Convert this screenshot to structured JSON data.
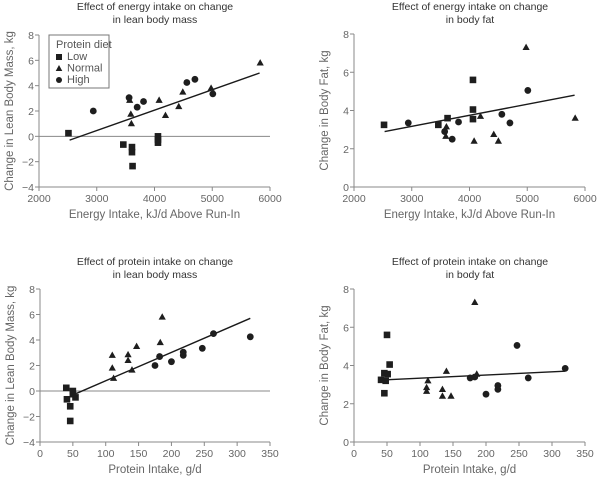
{
  "chart_data": [
    {
      "type": "scatter",
      "id": "energy-lean",
      "title": [
        "Effect of energy intake on change",
        "in lean body mass"
      ],
      "xlabel": "Energy Intake, kJ/d Above Run-In",
      "ylabel": "Change in Lean Body Mass, kg",
      "xlim": [
        2000,
        6000
      ],
      "ylim": [
        -4,
        8
      ],
      "xticks": [
        2000,
        3000,
        4000,
        5000,
        6000
      ],
      "yticks": [
        -4,
        -2,
        0,
        2,
        4,
        6,
        8
      ],
      "zero_line": true,
      "legend": {
        "title": "Protein diet",
        "placement": "top-left",
        "entries": [
          "Low",
          "Normal",
          "High"
        ]
      },
      "fit_line": [
        [
          2530,
          -0.3
        ],
        [
          5820,
          5.0
        ]
      ],
      "series": [
        {
          "name": "Low",
          "marker": "square",
          "points": [
            [
              2510,
              0.25
            ],
            [
              3460,
              -0.65
            ],
            [
              3610,
              -0.85
            ],
            [
              3610,
              -1.25
            ],
            [
              3620,
              -2.35
            ],
            [
              4060,
              0.0
            ],
            [
              4060,
              -0.25
            ],
            [
              4060,
              -0.5
            ]
          ]
        },
        {
          "name": "Normal",
          "marker": "triangle",
          "points": [
            [
              3570,
              2.85
            ],
            [
              3590,
              1.75
            ],
            [
              3600,
              1.0
            ],
            [
              4080,
              2.85
            ],
            [
              4190,
              1.65
            ],
            [
              4420,
              2.35
            ],
            [
              4490,
              3.5
            ],
            [
              4980,
              3.8
            ],
            [
              5830,
              5.8
            ]
          ]
        },
        {
          "name": "High",
          "marker": "circle",
          "points": [
            [
              2940,
              2.0
            ],
            [
              3560,
              3.05
            ],
            [
              3700,
              2.3
            ],
            [
              3810,
              2.75
            ],
            [
              4560,
              4.25
            ],
            [
              4700,
              4.5
            ],
            [
              5010,
              3.35
            ]
          ]
        }
      ]
    },
    {
      "type": "scatter",
      "id": "energy-fat",
      "title": [
        "Effect of energy intake on change",
        "in body fat"
      ],
      "xlabel": "Energy Intake, kJ/d Above Run-In",
      "ylabel": "Change in Body Fat, kg",
      "xlim": [
        2000,
        6000
      ],
      "ylim": [
        0,
        8
      ],
      "xticks": [
        2000,
        3000,
        4000,
        5000,
        6000
      ],
      "yticks": [
        0,
        2,
        4,
        6,
        8
      ],
      "zero_line": false,
      "fit_line": [
        [
          2530,
          2.9
        ],
        [
          5820,
          4.8
        ]
      ],
      "series": [
        {
          "name": "Low",
          "marker": "square",
          "points": [
            [
              2520,
              3.25
            ],
            [
              3460,
              3.25
            ],
            [
              3620,
              3.6
            ],
            [
              4060,
              5.6
            ],
            [
              4060,
              4.05
            ],
            [
              4060,
              3.55
            ]
          ]
        },
        {
          "name": "Normal",
          "marker": "triangle",
          "points": [
            [
              3600,
              3.15
            ],
            [
              3590,
              2.65
            ],
            [
              4080,
              2.4
            ],
            [
              4190,
              3.7
            ],
            [
              4420,
              2.75
            ],
            [
              4500,
              2.4
            ],
            [
              4980,
              7.3
            ],
            [
              5830,
              3.6
            ]
          ]
        },
        {
          "name": "High",
          "marker": "circle",
          "points": [
            [
              2940,
              3.35
            ],
            [
              3570,
              2.9
            ],
            [
              3700,
              2.5
            ],
            [
              3810,
              3.4
            ],
            [
              4560,
              3.8
            ],
            [
              4700,
              3.35
            ],
            [
              5010,
              5.05
            ]
          ]
        }
      ]
    },
    {
      "type": "scatter",
      "id": "protein-lean",
      "title": [
        "Effect of protein intake on change",
        "in lean body mass"
      ],
      "xlabel": "Protein Intake, g/d",
      "ylabel": "Change in Lean Body Mass, kg",
      "xlim": [
        0,
        350
      ],
      "ylim": [
        -4,
        8
      ],
      "xticks": [
        0,
        50,
        100,
        150,
        200,
        250,
        300,
        350
      ],
      "yticks": [
        -4,
        -2,
        0,
        2,
        4,
        6,
        8
      ],
      "zero_line": true,
      "fit_line": [
        [
          55,
          -0.2
        ],
        [
          320,
          5.7
        ]
      ],
      "series": [
        {
          "name": "Low",
          "marker": "square",
          "points": [
            [
              40,
              0.25
            ],
            [
              41,
              -0.65
            ],
            [
              46,
              -1.2
            ],
            [
              46,
              -2.35
            ],
            [
              50,
              0.0
            ],
            [
              50,
              -0.25
            ],
            [
              54,
              -0.5
            ]
          ]
        },
        {
          "name": "Normal",
          "marker": "triangle",
          "points": [
            [
              110,
              2.8
            ],
            [
              110,
              1.8
            ],
            [
              112,
              1.0
            ],
            [
              134,
              2.85
            ],
            [
              134,
              2.4
            ],
            [
              140,
              1.65
            ],
            [
              147,
              3.5
            ],
            [
              183,
              3.8
            ],
            [
              186,
              5.8
            ]
          ]
        },
        {
          "name": "High",
          "marker": "circle",
          "points": [
            [
              175,
              2.0
            ],
            [
              182,
              2.7
            ],
            [
              200,
              2.3
            ],
            [
              218,
              3.05
            ],
            [
              218,
              2.8
            ],
            [
              247,
              3.35
            ],
            [
              264,
              4.5
            ],
            [
              320,
              4.25
            ]
          ]
        }
      ]
    },
    {
      "type": "scatter",
      "id": "protein-fat",
      "title": [
        "Effect of protein intake on change",
        "in body fat"
      ],
      "xlabel": "Protein Intake, g/d",
      "ylabel": "Change in Body Fat, kg",
      "xlim": [
        0,
        350
      ],
      "ylim": [
        0,
        8
      ],
      "xticks": [
        0,
        50,
        100,
        150,
        200,
        250,
        300,
        350
      ],
      "yticks": [
        0,
        2,
        4,
        6,
        8
      ],
      "zero_line": false,
      "fit_line": [
        [
          48,
          3.25
        ],
        [
          320,
          3.7
        ]
      ],
      "series": [
        {
          "name": "Low",
          "marker": "square",
          "points": [
            [
              41,
              3.25
            ],
            [
              46,
              3.6
            ],
            [
              46,
              2.55
            ],
            [
              48,
              3.2
            ],
            [
              50,
              5.6
            ],
            [
              51,
              3.55
            ],
            [
              54,
              4.05
            ]
          ]
        },
        {
          "name": "Normal",
          "marker": "triangle",
          "points": [
            [
              110,
              2.85
            ],
            [
              110,
              2.65
            ],
            [
              112,
              3.2
            ],
            [
              134,
              2.75
            ],
            [
              134,
              2.4
            ],
            [
              140,
              3.7
            ],
            [
              147,
              2.4
            ],
            [
              183,
              7.3
            ],
            [
              186,
              3.55
            ]
          ]
        },
        {
          "name": "High",
          "marker": "circle",
          "points": [
            [
              176,
              3.35
            ],
            [
              183,
              3.4
            ],
            [
              200,
              2.5
            ],
            [
              218,
              2.95
            ],
            [
              218,
              2.75
            ],
            [
              247,
              5.05
            ],
            [
              264,
              3.35
            ],
            [
              320,
              3.85
            ]
          ]
        }
      ]
    }
  ]
}
